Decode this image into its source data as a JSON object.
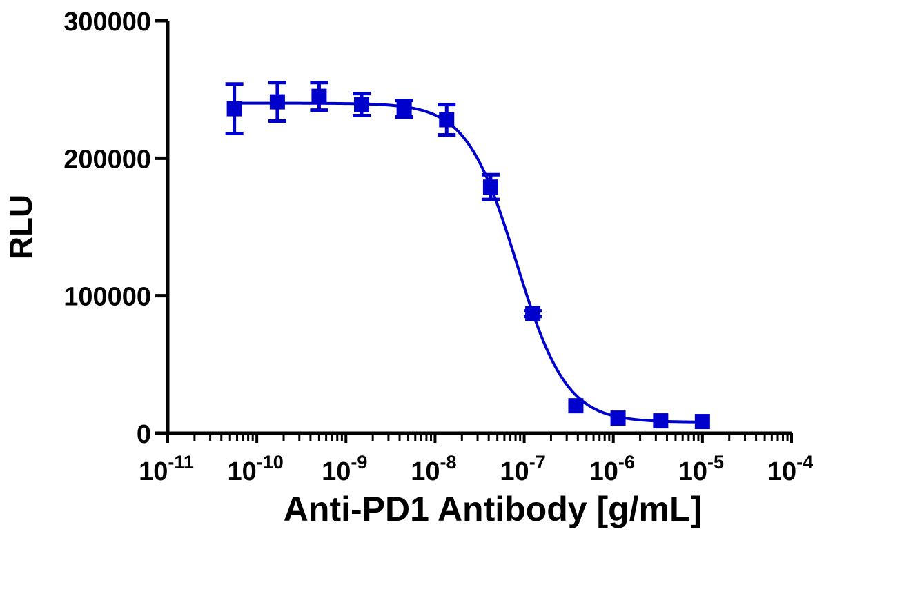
{
  "chart_data": {
    "type": "scatter",
    "title": "",
    "xlabel": "Anti-PD1 Antibody [g/mL]",
    "ylabel": "RLU",
    "x_scale": "log10",
    "xlim": [
      1e-11,
      0.0001
    ],
    "ylim": [
      0,
      300000
    ],
    "x_ticks": [
      {
        "base": "10",
        "exp": "-11"
      },
      {
        "base": "10",
        "exp": "-10"
      },
      {
        "base": "10",
        "exp": "-9"
      },
      {
        "base": "10",
        "exp": "-8"
      },
      {
        "base": "10",
        "exp": "-7"
      },
      {
        "base": "10",
        "exp": "-6"
      },
      {
        "base": "10",
        "exp": "-5"
      },
      {
        "base": "10",
        "exp": "-4"
      }
    ],
    "y_ticks": [
      "0",
      "100000",
      "200000",
      "300000"
    ],
    "y_tick_values": [
      0,
      100000,
      200000,
      300000
    ],
    "grid": false,
    "legend": "none",
    "series": [
      {
        "color": "#0000cc",
        "marker": "square",
        "x": [
          5.6e-11,
          1.7e-10,
          5e-10,
          1.5e-09,
          4.5e-09,
          1.35e-08,
          4.2e-08,
          1.25e-07,
          3.8e-07,
          1.13e-06,
          3.4e-06,
          1e-05
        ],
        "y": [
          236000,
          241000,
          245000,
          239000,
          236000,
          228000,
          179000,
          87000,
          20000,
          11000,
          9000,
          8500
        ],
        "error": [
          18000,
          14000,
          10000,
          8000,
          6000,
          11000,
          9000,
          2000,
          0,
          0,
          0,
          0
        ]
      }
    ],
    "fit": {
      "model": "4PL",
      "top": 240000,
      "bottom": 8000,
      "ec50": 8.2e-08,
      "hill": 1.55,
      "color": "#0000cc"
    }
  }
}
